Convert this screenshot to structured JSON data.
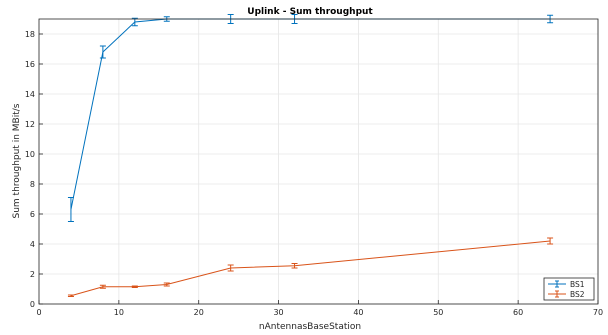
{
  "chart_data": {
    "type": "line",
    "title": "Uplink - Sum throughput",
    "xlabel": "nAntennasBaseStation",
    "ylabel": "Sum throughput in MBit/s",
    "xlim": [
      0,
      70
    ],
    "ylim": [
      0,
      19
    ],
    "xticks": [
      0,
      10,
      20,
      30,
      40,
      50,
      60,
      70
    ],
    "yticks": [
      0,
      2,
      4,
      6,
      8,
      10,
      12,
      14,
      16,
      18
    ],
    "grid": true,
    "legend_position": "bottom-right",
    "series": [
      {
        "name": "BS1",
        "color": "#0072BD",
        "x": [
          4,
          8,
          12,
          16,
          24,
          32,
          64
        ],
        "y": [
          6.3,
          16.8,
          18.8,
          19.0,
          19.0,
          19.0,
          19.0
        ],
        "err": [
          0.8,
          0.4,
          0.25,
          0.15,
          0.3,
          0.3,
          0.25
        ]
      },
      {
        "name": "BS2",
        "color": "#D95319",
        "x": [
          4,
          8,
          12,
          16,
          24,
          32,
          64
        ],
        "y": [
          0.55,
          1.15,
          1.15,
          1.3,
          2.4,
          2.55,
          4.2
        ],
        "err": [
          0.05,
          0.1,
          0.05,
          0.1,
          0.2,
          0.15,
          0.2
        ]
      }
    ]
  }
}
